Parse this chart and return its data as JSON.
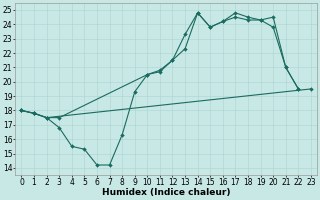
{
  "xlabel": "Humidex (Indice chaleur)",
  "bg_color": "#c8e8e5",
  "grid_color": "#aad4d0",
  "line_color": "#1a6b60",
  "xlim": [
    -0.5,
    23.5
  ],
  "ylim": [
    13.5,
    25.5
  ],
  "xticks": [
    0,
    1,
    2,
    3,
    4,
    5,
    6,
    7,
    8,
    9,
    10,
    11,
    12,
    13,
    14,
    15,
    16,
    17,
    18,
    19,
    20,
    21,
    22,
    23
  ],
  "yticks": [
    14,
    15,
    16,
    17,
    18,
    19,
    20,
    21,
    22,
    23,
    24,
    25
  ],
  "line1": {
    "x": [
      0,
      1,
      2,
      3,
      4,
      5,
      6,
      7,
      8,
      9,
      10,
      11,
      12,
      13,
      14,
      15,
      16,
      17,
      18,
      19,
      20,
      21,
      22
    ],
    "y": [
      18.0,
      17.8,
      17.5,
      16.8,
      15.5,
      15.3,
      14.2,
      14.2,
      16.3,
      19.3,
      20.5,
      20.7,
      21.5,
      23.3,
      24.8,
      23.8,
      24.2,
      24.5,
      24.3,
      24.3,
      23.8,
      21.0,
      19.5
    ]
  },
  "line2": {
    "x": [
      0,
      1,
      2,
      3,
      10,
      11,
      12,
      13,
      14,
      15,
      16,
      17,
      18,
      19,
      20,
      21,
      22
    ],
    "y": [
      18.0,
      17.8,
      17.5,
      17.5,
      20.5,
      20.8,
      21.5,
      22.3,
      24.8,
      23.8,
      24.2,
      24.8,
      24.5,
      24.3,
      24.5,
      21.0,
      19.5
    ]
  },
  "line3": {
    "x": [
      0,
      1,
      2,
      23
    ],
    "y": [
      18.0,
      17.8,
      17.5,
      19.5
    ]
  },
  "markersize": 2.0,
  "linewidth": 0.8,
  "xlabel_fontsize": 6.5,
  "tick_fontsize": 5.5
}
